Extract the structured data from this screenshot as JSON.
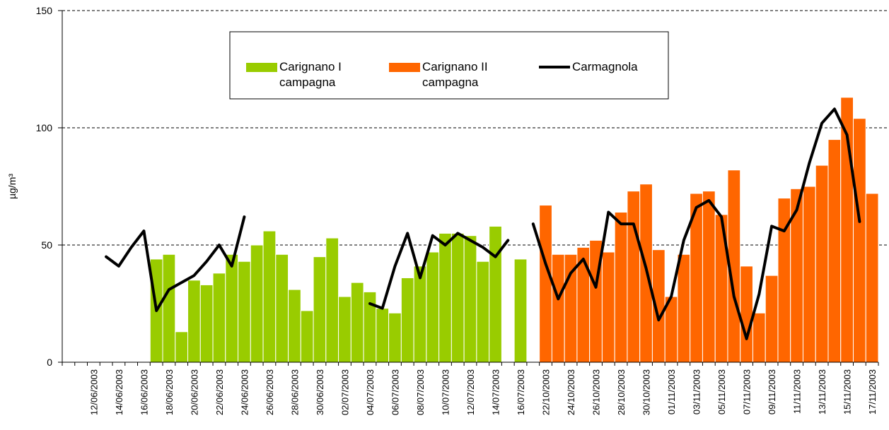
{
  "chart_data": {
    "type": "bar",
    "y_label": "µg/m³",
    "categories": [
      null,
      null,
      "12/06/2003",
      null,
      "14/06/2003",
      null,
      "16/06/2003",
      null,
      "18/06/2003",
      null,
      "20/06/2003",
      null,
      "22/06/2003",
      null,
      "24/06/2003",
      null,
      "26/06/2003",
      null,
      "28/06/2003",
      null,
      "30/06/2003",
      null,
      "02/07/2003",
      null,
      "04/07/2003",
      null,
      "06/07/2003",
      null,
      "08/07/2003",
      null,
      "10/07/2003",
      null,
      "12/07/2003",
      null,
      "14/07/2003",
      null,
      "16/07/2003",
      null,
      "22/10/2003",
      null,
      "24/10/2003",
      null,
      "26/10/2003",
      null,
      "28/10/2003",
      null,
      "30/10/2003",
      null,
      "01/11/2003",
      null,
      "03/11/2003",
      null,
      "05/11/2003",
      null,
      "07/11/2003",
      null,
      "09/11/2003",
      null,
      "11/11/2003",
      null,
      "13/11/2003",
      null,
      "15/11/2003",
      null,
      "17/11/2003"
    ],
    "series": [
      {
        "name": "Carignano I campagna",
        "type": "bar",
        "color": "#99cc00",
        "values": [
          null,
          null,
          null,
          null,
          null,
          null,
          null,
          44,
          46,
          13,
          35,
          33,
          38,
          46,
          43,
          50,
          56,
          46,
          31,
          22,
          45,
          53,
          28,
          34,
          30,
          23,
          21,
          36,
          41,
          47,
          55,
          55,
          54,
          43,
          58,
          null,
          44,
          null,
          null,
          null,
          null,
          null,
          null,
          null,
          null,
          null,
          null,
          null,
          null,
          null,
          null,
          null,
          null,
          null,
          null,
          null,
          null,
          null,
          null,
          null,
          null,
          null,
          null,
          null,
          null
        ]
      },
      {
        "name": "Carignano II campagna",
        "type": "bar",
        "color": "#ff6600",
        "values": [
          null,
          null,
          null,
          null,
          null,
          null,
          null,
          null,
          null,
          null,
          null,
          null,
          null,
          null,
          null,
          null,
          null,
          null,
          null,
          null,
          null,
          null,
          null,
          null,
          null,
          null,
          null,
          null,
          null,
          null,
          null,
          null,
          null,
          null,
          null,
          null,
          null,
          null,
          67,
          46,
          46,
          49,
          52,
          47,
          64,
          73,
          76,
          48,
          28,
          46,
          72,
          73,
          63,
          82,
          41,
          21,
          37,
          70,
          74,
          75,
          84,
          95,
          113,
          104,
          72
        ]
      },
      {
        "name": "Carmagnola",
        "type": "line",
        "color": "#000000",
        "values": [
          null,
          null,
          null,
          45,
          41,
          49,
          56,
          22,
          31,
          34,
          37,
          43,
          50,
          41,
          62,
          null,
          null,
          null,
          null,
          null,
          null,
          null,
          null,
          null,
          25,
          23,
          41,
          55,
          36,
          54,
          50,
          55,
          52,
          49,
          45,
          52,
          null,
          59,
          42,
          27,
          38,
          44,
          32,
          64,
          59,
          59,
          40,
          18,
          28,
          52,
          66,
          69,
          62,
          28,
          10,
          29,
          58,
          56,
          65,
          85,
          102,
          108,
          97,
          60,
          null
        ]
      }
    ],
    "ylim": [
      0,
      150
    ],
    "yticks": [
      0,
      50,
      100,
      150
    ],
    "grid": true
  }
}
